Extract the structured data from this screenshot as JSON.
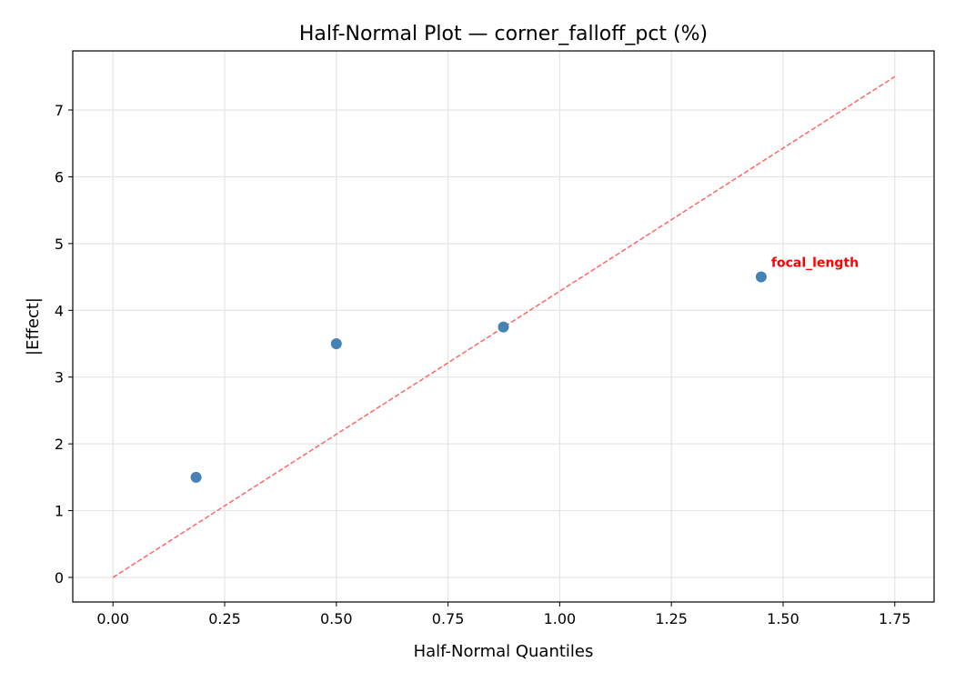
{
  "chart_data": {
    "type": "scatter",
    "title": "Half-Normal Plot — corner_falloff_pct (%)",
    "xlabel": "Half-Normal Quantiles",
    "ylabel": "|Effect|",
    "xlim": [
      -0.09,
      1.838
    ],
    "ylim": [
      -0.368,
      7.885
    ],
    "xticks": [
      0.0,
      0.25,
      0.5,
      0.75,
      1.0,
      1.25,
      1.5,
      1.75
    ],
    "xtick_labels": [
      "0.00",
      "0.25",
      "0.50",
      "0.75",
      "1.00",
      "1.25",
      "1.50",
      "1.75"
    ],
    "yticks": [
      0,
      1,
      2,
      3,
      4,
      5,
      6,
      7
    ],
    "ytick_labels": [
      "0",
      "1",
      "2",
      "3",
      "4",
      "5",
      "6",
      "7"
    ],
    "grid": true,
    "points": [
      {
        "x": 0.186,
        "y": 1.5
      },
      {
        "x": 0.5,
        "y": 3.5
      },
      {
        "x": 0.874,
        "y": 3.75
      },
      {
        "x": 1.451,
        "y": 4.5,
        "label": "focal_length"
      }
    ],
    "reference_line": {
      "x": [
        0,
        1.75
      ],
      "y": [
        0,
        7.5
      ],
      "style": "dashed"
    },
    "colors": {
      "points": "#4682b4",
      "reference_line": "#ff6666",
      "annotation": "#ff0000",
      "grid": "#e5e5e5"
    }
  }
}
